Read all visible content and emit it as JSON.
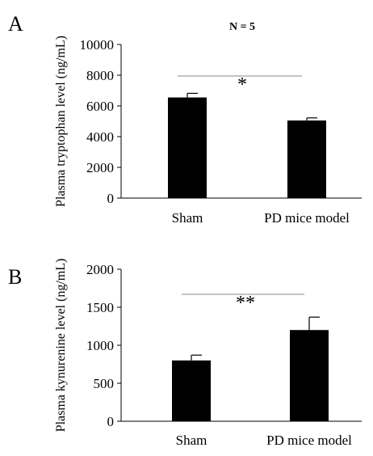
{
  "figure": {
    "sample_size_label": "N = 5"
  },
  "chart_data": [
    {
      "type": "bar",
      "panel": "A",
      "categories": [
        "Sham",
        "PD mice model"
      ],
      "values": [
        6550,
        5050
      ],
      "errors": [
        270,
        170
      ],
      "ylabel": "Plasma tryptophan level (ng/mL)",
      "ylim": [
        0,
        10000
      ],
      "yticks": [
        "0",
        "2000",
        "4000",
        "6000",
        "8000",
        "10000"
      ],
      "significance": "*",
      "grid": false,
      "bar_color": "#000000"
    },
    {
      "type": "bar",
      "panel": "B",
      "categories": [
        "Sham",
        "PD mice model"
      ],
      "values": [
        800,
        1200
      ],
      "errors": [
        70,
        170
      ],
      "ylabel": "Plasma kynurenine level (ng/mL)",
      "ylim": [
        0,
        2000
      ],
      "yticks": [
        "0",
        "500",
        "1000",
        "1500",
        "2000"
      ],
      "significance": "**",
      "grid": false,
      "bar_color": "#000000"
    }
  ]
}
